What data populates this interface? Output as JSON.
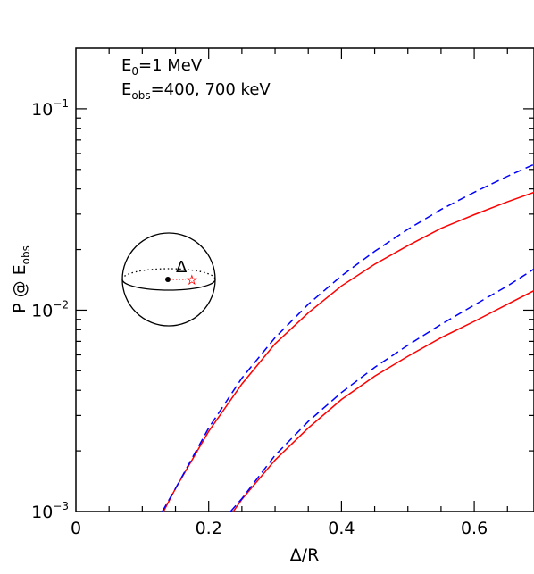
{
  "chart_data": {
    "type": "line",
    "xlabel": "Δ/R",
    "ylabel_parts": {
      "main": "P @ E",
      "sub": "obs"
    },
    "xlim": [
      0,
      0.69
    ],
    "ylim": [
      0.001,
      0.2
    ],
    "yscale": "log",
    "x_ticks": [
      {
        "value": 0,
        "label": "0"
      },
      {
        "value": 0.2,
        "label": "0.2"
      },
      {
        "value": 0.4,
        "label": "0.4"
      },
      {
        "value": 0.6,
        "label": "0.6"
      }
    ],
    "y_ticks": [
      {
        "value": 0.001,
        "base": "10",
        "exp": "−3"
      },
      {
        "value": 0.01,
        "base": "10",
        "exp": "−2"
      },
      {
        "value": 0.1,
        "base": "10",
        "exp": "−1"
      }
    ],
    "annotations": {
      "line1": {
        "main": "E",
        "sub": "0",
        "rest": "=1 MeV"
      },
      "line2": {
        "main": "E",
        "sub": "obs",
        "rest": "=400, 700 keV"
      },
      "inset_label": "Δ"
    },
    "series": [
      {
        "style": "solid",
        "color": "#ff0000",
        "x": [
          0.132,
          0.15,
          0.2,
          0.25,
          0.3,
          0.35,
          0.4,
          0.45,
          0.5,
          0.55,
          0.6,
          0.65,
          0.69
        ],
        "y": [
          0.001,
          0.0013,
          0.0025,
          0.0043,
          0.0068,
          0.0097,
          0.0132,
          0.0169,
          0.0209,
          0.0255,
          0.0298,
          0.0345,
          0.0385
        ]
      },
      {
        "style": "dashed",
        "color": "#0000ff",
        "x": [
          0.13,
          0.15,
          0.2,
          0.25,
          0.3,
          0.35,
          0.4,
          0.45,
          0.5,
          0.55,
          0.6,
          0.65,
          0.69
        ],
        "y": [
          0.001,
          0.0013,
          0.0026,
          0.0046,
          0.0073,
          0.0107,
          0.0148,
          0.0196,
          0.0252,
          0.0316,
          0.0385,
          0.0462,
          0.053
        ]
      },
      {
        "style": "solid",
        "color": "#ff0000",
        "x": [
          0.237,
          0.25,
          0.3,
          0.35,
          0.4,
          0.45,
          0.5,
          0.55,
          0.6,
          0.65,
          0.69
        ],
        "y": [
          0.001,
          0.00115,
          0.0018,
          0.0026,
          0.0036,
          0.0047,
          0.0059,
          0.0073,
          0.0088,
          0.0107,
          0.0125
        ]
      },
      {
        "style": "dashed",
        "color": "#0000ff",
        "x": [
          0.233,
          0.25,
          0.3,
          0.35,
          0.4,
          0.45,
          0.5,
          0.55,
          0.6,
          0.65,
          0.69
        ],
        "y": [
          0.001,
          0.00116,
          0.0019,
          0.0028,
          0.0039,
          0.0052,
          0.0067,
          0.0085,
          0.0106,
          0.0132,
          0.016
        ]
      }
    ]
  }
}
